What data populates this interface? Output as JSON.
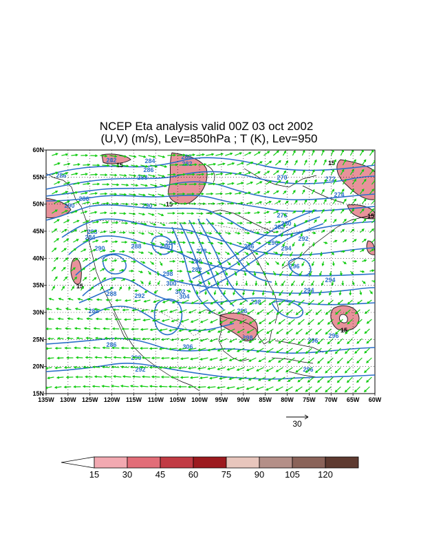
{
  "title_line1": "NCEP Eta analysis valid 00Z 03 oct 2002",
  "title_line2": "(U,V) (m/s), Lev=850hPa ; T (K), Lev=950",
  "y_ticks": [
    "60N",
    "55N",
    "50N",
    "45N",
    "40N",
    "35N",
    "30N",
    "25N",
    "20N",
    "15N"
  ],
  "x_ticks": [
    "135W",
    "130W",
    "125W",
    "120W",
    "115W",
    "110W",
    "105W",
    "100W",
    "95W",
    "90W",
    "85W",
    "80W",
    "75W",
    "70W",
    "65W",
    "60W"
  ],
  "vector_ref_label": "30",
  "colorbar": {
    "labels": [
      "15",
      "30",
      "45",
      "60",
      "75",
      "90",
      "105",
      "120"
    ],
    "colors": [
      "#f2a9b1",
      "#e26d78",
      "#c13b44",
      "#9c1a1f",
      "#e8c6bd",
      "#b48f88",
      "#8a6359",
      "#5e3a30"
    ]
  },
  "colors": {
    "contour": "#2a6fc9",
    "vector": "#10cc10",
    "shade": "#e8929b"
  },
  "map": {
    "lon_range": [
      -135,
      -60
    ],
    "lat_range": [
      15,
      60
    ],
    "temperature_contour_labels": [
      "282",
      "284",
      "286",
      "288",
      "290",
      "280",
      "282",
      "270",
      "272",
      "274",
      "286",
      "286",
      "290",
      "288",
      "284",
      "290",
      "288",
      "286",
      "264",
      "278",
      "280",
      "282",
      "298",
      "300",
      "302",
      "304",
      "276",
      "280",
      "282",
      "286",
      "290",
      "294",
      "292",
      "296",
      "294",
      "288",
      "292",
      "294",
      "298",
      "296",
      "298",
      "296",
      "288",
      "286",
      "306",
      "290",
      "292",
      "296",
      "296"
    ],
    "wind_speed_labels": [
      "15",
      "15",
      "15",
      "15",
      "15",
      "15"
    ]
  }
}
